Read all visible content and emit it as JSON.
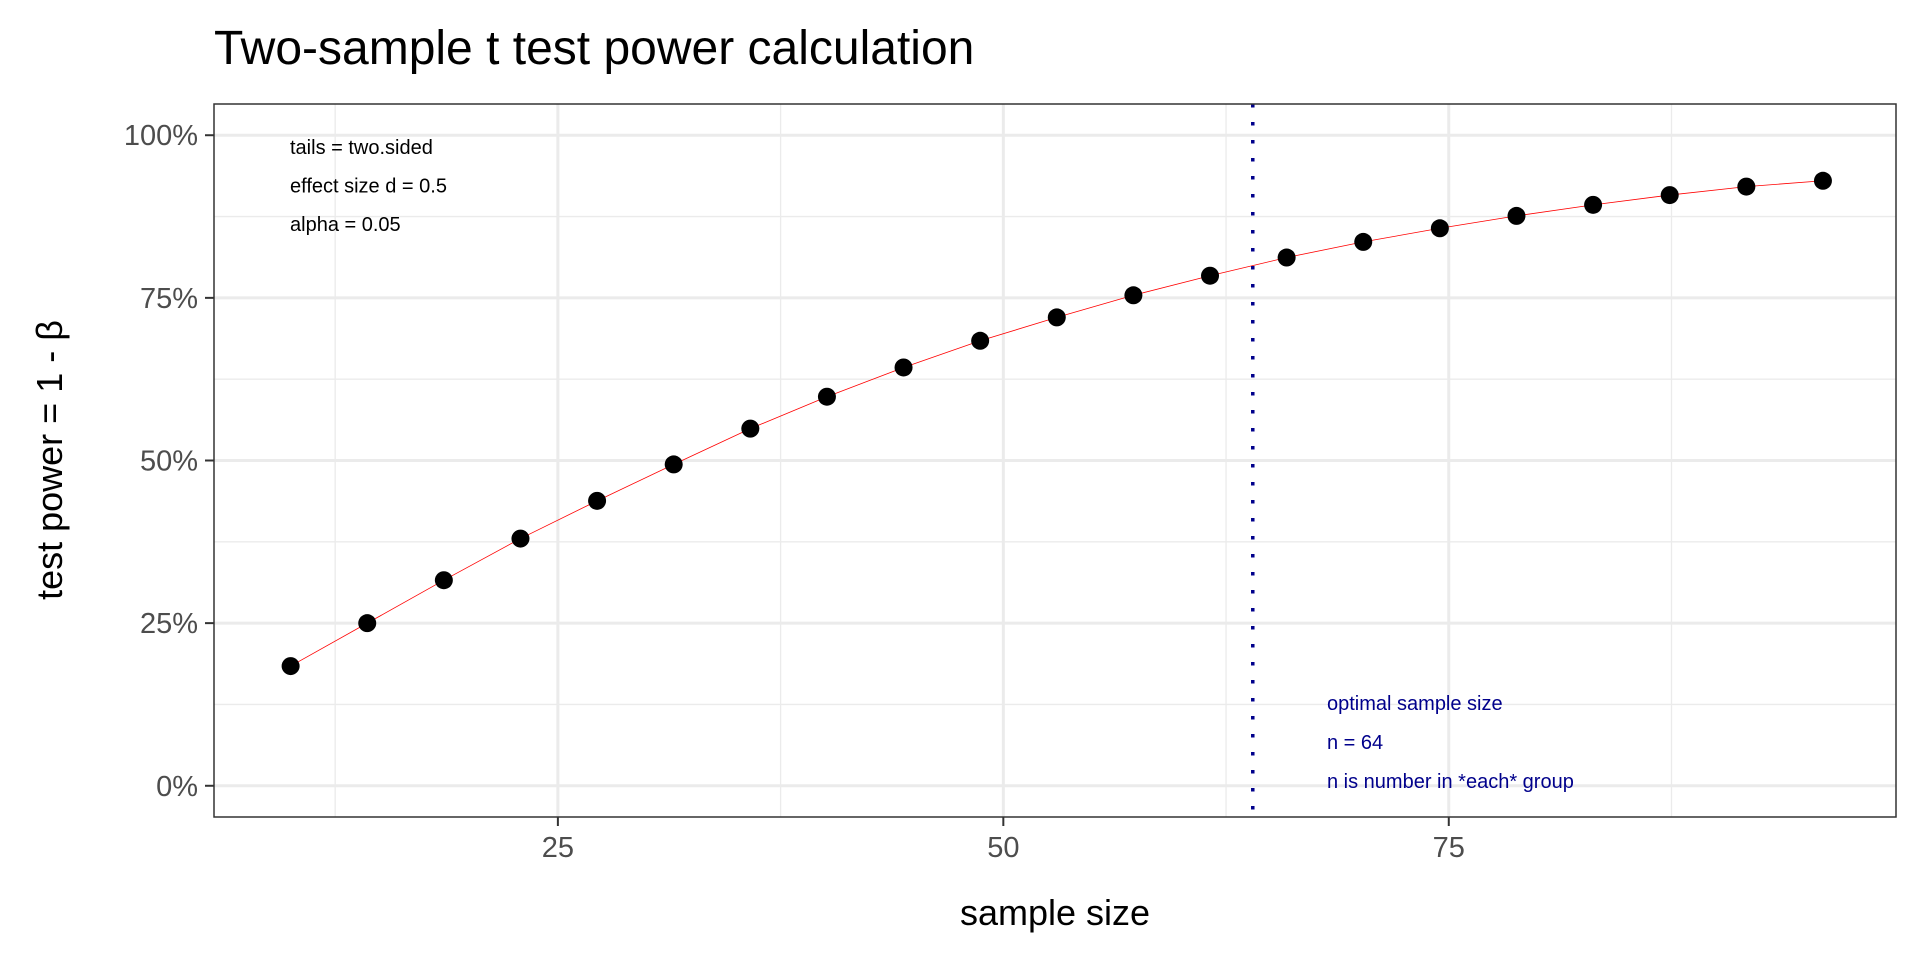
{
  "chart_data": {
    "type": "scatter",
    "title": "Two-sample t test power calculation",
    "xlabel": "sample size",
    "ylabel": "test power = 1 - β",
    "xlim": [
      5.7,
      100.1
    ],
    "ylim": [
      -0.048,
      1.048
    ],
    "x_ticks": [
      25,
      50,
      75
    ],
    "x_tick_labels": [
      "25",
      "50",
      "75"
    ],
    "y_ticks": [
      0,
      0.25,
      0.5,
      0.75,
      1
    ],
    "y_tick_labels": [
      "0%",
      "25%",
      "50%",
      "75%",
      "100%"
    ],
    "grid": true,
    "x": [
      10,
      14.3,
      18.6,
      22.9,
      27.2,
      31.5,
      35.8,
      40.1,
      44.4,
      48.7,
      53,
      57.3,
      61.6,
      65.9,
      70.2,
      74.5,
      78.8,
      83.1,
      87.4,
      91.7,
      96
    ],
    "y": [
      0.184,
      0.25,
      0.316,
      0.38,
      0.438,
      0.494,
      0.549,
      0.598,
      0.643,
      0.684,
      0.72,
      0.754,
      0.784,
      0.812,
      0.836,
      0.857,
      0.876,
      0.893,
      0.908,
      0.921,
      0.93
    ],
    "point_color": "#000000",
    "line_color": "#ff0000",
    "vline": {
      "x": 64,
      "color": "#00008b",
      "style": "dotted"
    },
    "annotations_left": [
      "tails = two.sided",
      "effect size d = 0.5",
      "alpha = 0.05"
    ],
    "annotations_right": [
      "optimal sample size",
      "n = 64",
      "n is number in *each* group"
    ],
    "annotation_right_color": "#00008b"
  }
}
